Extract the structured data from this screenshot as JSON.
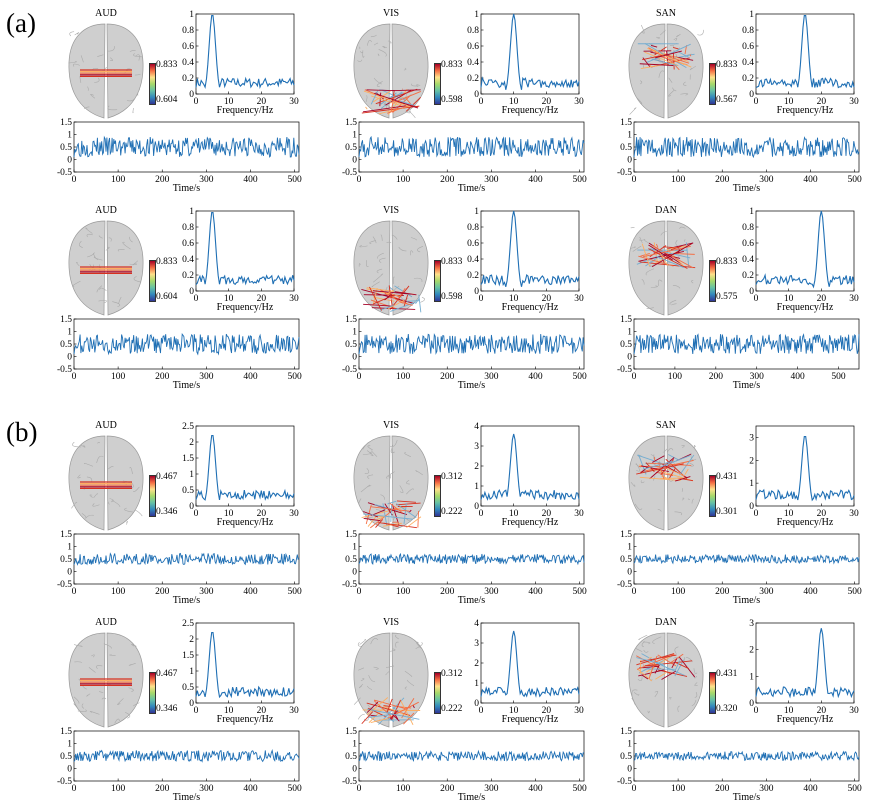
{
  "figure": {
    "label_a": "(a)",
    "label_b": "(b)",
    "freq_xlabel": "Frequency/Hz",
    "time_xlabel": "Time/s",
    "colors": {
      "line": "#1f6fb4",
      "brain": "#cfcfcf"
    }
  },
  "panels": [
    {
      "id": "a1",
      "net": "AUD",
      "cb_max": "0.833",
      "cb_min": "0.604",
      "peak_hz": 5,
      "spec_ymax": 1,
      "spec_yticks": [
        "0",
        "0.2",
        "0.4",
        "0.6",
        "0.8",
        "1"
      ],
      "spec_xticks": [
        "0",
        "10",
        "20",
        "30"
      ],
      "spec_peak": 1.0,
      "ts_xticks": [
        "0",
        "100",
        "200",
        "300",
        "400",
        "500"
      ],
      "ts_yticks": [
        "-0.5",
        "0",
        "0.5",
        "1",
        "1.5"
      ],
      "ts_amp": 0.8,
      "ts_len": 510
    },
    {
      "id": "a2",
      "net": "VIS",
      "cb_max": "0.833",
      "cb_min": "0.598",
      "peak_hz": 10,
      "spec_ymax": 1,
      "spec_yticks": [
        "0",
        "0.2",
        "0.4",
        "0.6",
        "0.8",
        "1"
      ],
      "spec_xticks": [
        "0",
        "10",
        "20",
        "30"
      ],
      "spec_peak": 1.0,
      "ts_xticks": [
        "0",
        "100",
        "200",
        "300",
        "400",
        "500"
      ],
      "ts_yticks": [
        "-0.5",
        "0",
        "0.5",
        "1",
        "1.5"
      ],
      "ts_amp": 0.8,
      "ts_len": 510
    },
    {
      "id": "a3",
      "net": "SAN",
      "cb_max": "0.833",
      "cb_min": "0.567",
      "peak_hz": 15,
      "spec_ymax": 1,
      "spec_yticks": [
        "0",
        "0.2",
        "0.4",
        "0.6",
        "0.8",
        "1"
      ],
      "spec_xticks": [
        "0",
        "10",
        "20",
        "30"
      ],
      "spec_peak": 1.0,
      "ts_xticks": [
        "0",
        "100",
        "200",
        "300",
        "400",
        "500"
      ],
      "ts_yticks": [
        "-0.5",
        "0",
        "0.5",
        "1",
        "1.5"
      ],
      "ts_amp": 0.8,
      "ts_len": 510
    },
    {
      "id": "a4",
      "net": "AUD",
      "cb_max": "0.833",
      "cb_min": "0.604",
      "peak_hz": 5,
      "spec_ymax": 1,
      "spec_yticks": [
        "0",
        "0.2",
        "0.4",
        "0.6",
        "0.8",
        "1"
      ],
      "spec_xticks": [
        "0",
        "10",
        "20",
        "30"
      ],
      "spec_peak": 1.0,
      "ts_xticks": [
        "0",
        "100",
        "200",
        "300",
        "400",
        "500"
      ],
      "ts_yticks": [
        "-0.5",
        "0",
        "0.5",
        "1",
        "1.5"
      ],
      "ts_amp": 0.8,
      "ts_len": 510
    },
    {
      "id": "a5",
      "net": "VIS",
      "cb_max": "0.833",
      "cb_min": "0.598",
      "peak_hz": 10,
      "spec_ymax": 1,
      "spec_yticks": [
        "0",
        "0.2",
        "0.4",
        "0.6",
        "0.8",
        "1"
      ],
      "spec_xticks": [
        "0",
        "10",
        "20",
        "30"
      ],
      "spec_peak": 1.0,
      "ts_xticks": [
        "0",
        "100",
        "200",
        "300",
        "400",
        "500"
      ],
      "ts_yticks": [
        "-0.5",
        "0",
        "0.5",
        "1",
        "1.5"
      ],
      "ts_amp": 0.8,
      "ts_len": 510
    },
    {
      "id": "a6",
      "net": "DAN",
      "cb_max": "0.833",
      "cb_min": "0.575",
      "peak_hz": 20,
      "spec_ymax": 1,
      "spec_yticks": [
        "0",
        "0.2",
        "0.4",
        "0.6",
        "0.8",
        "1"
      ],
      "spec_xticks": [
        "0",
        "10",
        "20",
        "30"
      ],
      "spec_peak": 1.0,
      "ts_xticks": [
        "0",
        "100",
        "200",
        "300",
        "400",
        "500"
      ],
      "ts_yticks": [
        "-0.5",
        "0",
        "0.5",
        "1",
        "1.5"
      ],
      "ts_amp": 0.8,
      "ts_len": 550
    },
    {
      "id": "b1",
      "net": "AUD",
      "cb_max": "0.467",
      "cb_min": "0.346",
      "peak_hz": 5,
      "spec_ymax": 2.5,
      "spec_yticks": [
        "0",
        "0.5",
        "1",
        "1.5",
        "2",
        "2.5"
      ],
      "spec_xticks": [
        "0",
        "10",
        "20",
        "30"
      ],
      "spec_peak": 2.25,
      "ts_xticks": [
        "0",
        "100",
        "200",
        "300",
        "400",
        "500"
      ],
      "ts_yticks": [
        "-0.5",
        "0",
        "0.5",
        "1",
        "1.5"
      ],
      "ts_amp": 0.45,
      "ts_len": 510
    },
    {
      "id": "b2",
      "net": "VIS",
      "cb_max": "0.312",
      "cb_min": "0.222",
      "peak_hz": 10,
      "spec_ymax": 4,
      "spec_yticks": [
        "0",
        "1",
        "2",
        "3",
        "4"
      ],
      "spec_xticks": [
        "0",
        "10",
        "20",
        "30"
      ],
      "spec_peak": 3.6,
      "ts_xticks": [
        "0",
        "100",
        "200",
        "300",
        "400",
        "500"
      ],
      "ts_yticks": [
        "-0.5",
        "0",
        "0.5",
        "1",
        "1.5"
      ],
      "ts_amp": 0.4,
      "ts_len": 510
    },
    {
      "id": "b3",
      "net": "SAN",
      "cb_max": "0.431",
      "cb_min": "0.301",
      "peak_hz": 15,
      "spec_ymax": 3.5,
      "spec_yticks": [
        "0",
        "1",
        "2",
        "3"
      ],
      "spec_xticks": [
        "0",
        "10",
        "20",
        "30"
      ],
      "spec_peak": 3.1,
      "ts_xticks": [
        "0",
        "100",
        "200",
        "300",
        "400",
        "500"
      ],
      "ts_yticks": [
        "-0.5",
        "0",
        "0.5",
        "1",
        "1.5"
      ],
      "ts_amp": 0.35,
      "ts_len": 510
    },
    {
      "id": "b4",
      "net": "AUD",
      "cb_max": "0.467",
      "cb_min": "0.346",
      "peak_hz": 5,
      "spec_ymax": 2.5,
      "spec_yticks": [
        "0",
        "0.5",
        "1",
        "1.5",
        "2",
        "2.5"
      ],
      "spec_xticks": [
        "0",
        "10",
        "20",
        "30"
      ],
      "spec_peak": 2.25,
      "ts_xticks": [
        "0",
        "100",
        "200",
        "300",
        "400",
        "500"
      ],
      "ts_yticks": [
        "-0.5",
        "0",
        "0.5",
        "1",
        "1.5"
      ],
      "ts_amp": 0.45,
      "ts_len": 510
    },
    {
      "id": "b5",
      "net": "VIS",
      "cb_max": "0.312",
      "cb_min": "0.222",
      "peak_hz": 10,
      "spec_ymax": 4,
      "spec_yticks": [
        "0",
        "1",
        "2",
        "3",
        "4"
      ],
      "spec_xticks": [
        "0",
        "10",
        "20",
        "30"
      ],
      "spec_peak": 3.6,
      "ts_xticks": [
        "0",
        "100",
        "200",
        "300",
        "400",
        "500"
      ],
      "ts_yticks": [
        "-0.5",
        "0",
        "0.5",
        "1",
        "1.5"
      ],
      "ts_amp": 0.4,
      "ts_len": 510
    },
    {
      "id": "b6",
      "net": "DAN",
      "cb_max": "0.431",
      "cb_min": "0.320",
      "peak_hz": 20,
      "spec_ymax": 3,
      "spec_yticks": [
        "0",
        "1",
        "2",
        "3"
      ],
      "spec_xticks": [
        "0",
        "10",
        "20",
        "30"
      ],
      "spec_peak": 2.8,
      "ts_xticks": [
        "0",
        "100",
        "200",
        "300",
        "400",
        "500"
      ],
      "ts_yticks": [
        "-0.5",
        "0",
        "0.5",
        "1",
        "1.5"
      ],
      "ts_amp": 0.35,
      "ts_len": 510
    }
  ]
}
